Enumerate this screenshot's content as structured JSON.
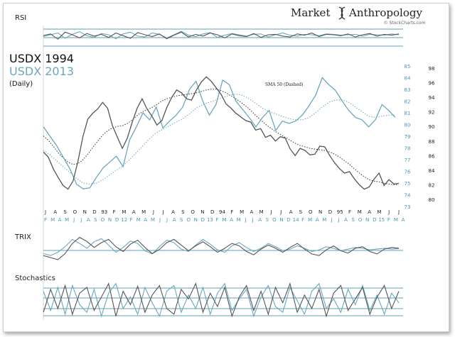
{
  "brand": {
    "left": "Market",
    "right": "Anthropology",
    "sub": "© StockCharts.com"
  },
  "chart_data": {
    "type": "line",
    "title_1994": "USDX 1994",
    "title_2013": "USDX 2013",
    "title_daily": "(Daily)",
    "sma_label": "SMA 50 (Dashed)",
    "colors": {
      "usdx1994": "#555555",
      "usdx2013": "#6aa7bd",
      "axis2013": "#4a97b3",
      "grid": "#2f7f92"
    },
    "main": {
      "right_axis_2013": [
        73,
        74,
        75,
        76,
        77,
        78,
        79,
        80,
        81,
        82,
        83,
        84,
        85
      ],
      "right_axis_1994": [
        80,
        82,
        84,
        86,
        88,
        90,
        92,
        94,
        96,
        98
      ],
      "x_ticks_1994": [
        "J",
        "A",
        "S",
        "O",
        "N",
        "D",
        "93",
        "F",
        "M",
        "A",
        "M",
        "J",
        "J",
        "A",
        "S",
        "O",
        "N",
        "D",
        "94",
        "F",
        "M",
        "A",
        "M",
        "J",
        "J",
        "A",
        "S",
        "O",
        "N",
        "D",
        "95",
        "F",
        "M",
        "A",
        "M",
        "J",
        "J"
      ],
      "x_ticks_2013": [
        "F",
        "M",
        "A",
        "M",
        "J",
        "J",
        "A",
        "S",
        "O",
        "N",
        "D",
        "12",
        "F",
        "M",
        "A",
        "M",
        "J",
        "J",
        "A",
        "S",
        "O",
        "N",
        "D",
        "13",
        "F",
        "M",
        "A",
        "M",
        "J",
        "J",
        "A",
        "S",
        "O",
        "N",
        "D",
        "14",
        "F",
        "M",
        "A",
        "M",
        "J",
        "J",
        "A",
        "S",
        "O",
        "N",
        "D",
        "15",
        "F",
        "M",
        "A"
      ],
      "usdx1994": [
        86.5,
        85.8,
        84.2,
        83.0,
        81.9,
        81.4,
        82.5,
        85.2,
        88.6,
        91.0,
        91.8,
        92.4,
        93.3,
        92.5,
        90.1,
        88.5,
        87.0,
        88.4,
        90.6,
        92.5,
        93.8,
        92.4,
        91.4,
        90.2,
        90.8,
        92.6,
        94.0,
        95.0,
        94.6,
        93.8,
        93.6,
        95.0,
        96.1,
        96.8,
        96.2,
        95.3,
        94.4,
        93.1,
        92.5,
        91.8,
        91.3,
        90.8,
        90.6,
        89.5,
        89.7,
        88.5,
        88.8,
        88.0,
        88.6,
        88.4,
        86.9,
        86.0,
        87.0,
        86.7,
        86.1,
        86.2,
        87.3,
        87.2,
        86.0,
        85.0,
        84.2,
        83.6,
        83.8,
        82.8,
        82.0,
        81.4,
        81.7,
        82.8,
        83.6,
        81.9,
        82.7,
        82.1,
        82.2
      ],
      "usdx2013": [
        79.8,
        79.0,
        78.2,
        77.2,
        76.2,
        74.9,
        74.5,
        74.6,
        75.5,
        76.3,
        76.8,
        77.3,
        76.4,
        78.7,
        79.8,
        81.0,
        80.4,
        81.5,
        79.7,
        80.3,
        80.8,
        81.5,
        83.0,
        83.7,
        82.0,
        80.8,
        81.7,
        83.8,
        83.4,
        82.0,
        81.3,
        80.6,
        79.8,
        80.6,
        81.2,
        79.5,
        80.3,
        80.1,
        80.3,
        80.8,
        81.6,
        82.5,
        84.0,
        83.4,
        82.9,
        82.0,
        81.2,
        80.6,
        80.4,
        79.8,
        80.4,
        81.7,
        81.2,
        80.6
      ],
      "sma1994": [
        88.7,
        88.1,
        87.3,
        86.4,
        85.7,
        85.1,
        84.8,
        84.9,
        85.4,
        86.2,
        87.1,
        88.0,
        88.8,
        89.4,
        89.8,
        90.0,
        90.1,
        90.4,
        90.9,
        91.5,
        92.0,
        92.3,
        92.6,
        93.0,
        93.5,
        93.8,
        94.0,
        94.2,
        94.3,
        94.4,
        94.5,
        94.6,
        94.8,
        95.0,
        95.1,
        95.1,
        94.9,
        94.6,
        94.2,
        93.8,
        93.3,
        92.8,
        92.2,
        91.5,
        90.9,
        90.3,
        89.8,
        89.3,
        88.9,
        88.5,
        88.1,
        87.7,
        87.4,
        87.2,
        87.0,
        86.9,
        86.8,
        86.7,
        86.5,
        86.2,
        85.8,
        85.3,
        84.8,
        84.2,
        83.6,
        83.1,
        82.7,
        82.5,
        82.4,
        82.2,
        82.1,
        82.0,
        82.0
      ],
      "sma2013": [
        77.8,
        77.4,
        76.9,
        76.4,
        75.9,
        75.4,
        75.0,
        74.9,
        75.0,
        75.3,
        75.7,
        76.1,
        76.5,
        77.0,
        77.6,
        78.2,
        78.8,
        79.3,
        79.6,
        79.9,
        80.2,
        80.5,
        80.9,
        81.4,
        81.7,
        81.9,
        82.1,
        82.3,
        82.5,
        82.6,
        82.5,
        82.2,
        81.8,
        81.4,
        81.1,
        80.9,
        80.7,
        80.5,
        80.4,
        80.4,
        80.6,
        81.0,
        81.5,
        81.9,
        82.1,
        82.1,
        81.9,
        81.5,
        81.1,
        80.7,
        80.6,
        80.7,
        80.8,
        80.8
      ]
    },
    "panels": [
      {
        "label": "RSI",
        "s1994": [
          55,
          62,
          38,
          70,
          58,
          44,
          64,
          52,
          60,
          46,
          66,
          54,
          42,
          68,
          58,
          50,
          62,
          40,
          56,
          70,
          48,
          60,
          52,
          66,
          58,
          44,
          62,
          54,
          50,
          64,
          46,
          58,
          60,
          52,
          48,
          62,
          56,
          66,
          50,
          60,
          58,
          54,
          62,
          48,
          58,
          64,
          52,
          60,
          56,
          62
        ],
        "s2013": [
          50,
          58,
          66,
          42,
          60,
          72,
          54,
          46,
          64,
          58,
          40,
          62,
          70,
          52,
          48,
          66,
          60,
          44,
          58,
          74,
          56,
          50,
          62,
          68,
          46,
          56,
          64,
          58,
          52,
          60,
          62,
          48,
          58,
          66,
          56,
          52,
          60,
          58,
          54,
          62,
          60,
          56,
          58,
          60,
          52,
          60,
          58,
          56,
          62,
          58
        ]
      },
      {
        "label": "TRIX",
        "s1994": [
          40,
          35,
          30,
          45,
          70,
          85,
          75,
          60,
          72,
          80,
          62,
          50,
          68,
          78,
          60,
          45,
          55,
          72,
          80,
          66,
          52,
          64,
          74,
          62,
          48,
          58,
          70,
          64,
          50,
          42,
          56,
          66,
          58,
          48,
          60,
          70,
          56,
          44,
          40,
          54,
          64,
          52,
          46,
          58,
          62,
          50,
          44,
          56,
          60,
          58
        ],
        "s2013": [
          45,
          40,
          48,
          62,
          80,
          70,
          58,
          74,
          82,
          66,
          48,
          60,
          76,
          70,
          52,
          44,
          62,
          78,
          72,
          56,
          50,
          66,
          80,
          68,
          54,
          48,
          64,
          72,
          60,
          50,
          58,
          70,
          62,
          52,
          56,
          64,
          58,
          50,
          54,
          62,
          58,
          52,
          56,
          60,
          58,
          54,
          56,
          58,
          56,
          57
        ]
      },
      {
        "label": "Stochastics",
        "s1994": [
          20,
          80,
          30,
          90,
          15,
          70,
          85,
          25,
          60,
          95,
          10,
          75,
          40,
          88,
          20,
          65,
          90,
          30,
          15,
          80,
          55,
          95,
          20,
          70,
          35,
          85,
          10,
          60,
          90,
          25,
          75,
          15,
          85,
          45,
          95,
          20,
          65,
          30,
          80,
          10,
          70,
          90,
          25,
          55,
          85,
          15,
          60,
          90,
          30,
          75
        ],
        "s2013": [
          75,
          25,
          85,
          15,
          90,
          40,
          20,
          80,
          10,
          70,
          95,
          30,
          60,
          15,
          85,
          45,
          10,
          75,
          90,
          20,
          65,
          30,
          85,
          15,
          70,
          95,
          25,
          55,
          80,
          10,
          60,
          90,
          35,
          20,
          85,
          50,
          15,
          75,
          95,
          30,
          55,
          20,
          80,
          40,
          90,
          25,
          65,
          15,
          70,
          45
        ]
      }
    ]
  }
}
